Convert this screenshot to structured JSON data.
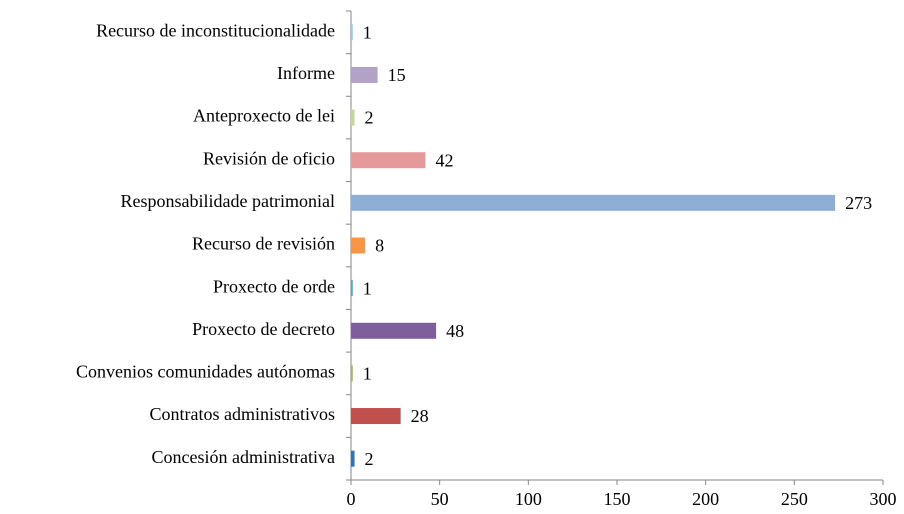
{
  "chart_data": {
    "type": "bar",
    "orientation": "horizontal",
    "categories": [
      "Recurso de inconstitucionalidade",
      "Informe",
      "Anteproxecto de lei",
      "Revisión de oficio",
      "Responsabilidade patrimonial",
      "Recurso de revisión",
      "Proxecto de orde",
      "Proxecto de decreto",
      "Convenios comunidades autónomas",
      "Contratos administrativos",
      "Concesión administrativa"
    ],
    "values": [
      1,
      15,
      2,
      42,
      273,
      8,
      1,
      48,
      1,
      28,
      2
    ],
    "colors": [
      "#93cddd",
      "#b3a2c7",
      "#c3d69b",
      "#e6999a",
      "#8eaed5",
      "#f79646",
      "#4bacc6",
      "#7f5f9b",
      "#9bbb59",
      "#c0504d",
      "#2e75b6"
    ],
    "xlim": [
      0,
      300
    ],
    "xticks": [
      0,
      50,
      100,
      150,
      200,
      250,
      300
    ],
    "grid": false,
    "data_labels": true
  }
}
